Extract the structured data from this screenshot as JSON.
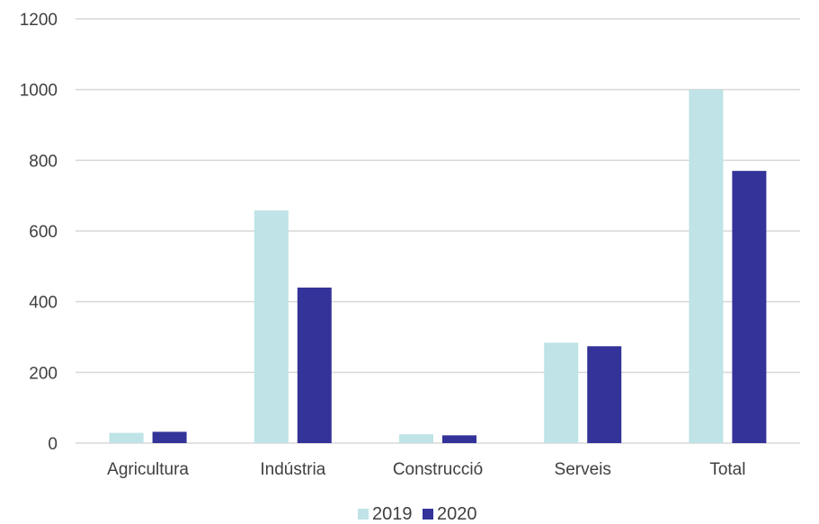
{
  "chart_data": {
    "type": "bar",
    "categories": [
      "Agricultura",
      "Indústria",
      "Construcció",
      "Serveis",
      "Total"
    ],
    "series": [
      {
        "name": "2019",
        "values": [
          29,
          658,
          25,
          284,
          1000
        ],
        "color": "#bfe3e6"
      },
      {
        "name": "2020",
        "values": [
          32,
          440,
          22,
          274,
          770
        ],
        "color": "#333399"
      }
    ],
    "ylim": [
      0,
      1200
    ],
    "yticks": [
      "0",
      "200",
      "400",
      "600",
      "800",
      "1000",
      "1200"
    ],
    "grid": true,
    "legend": "bottom-center",
    "title": "",
    "xlabel": "",
    "ylabel": ""
  }
}
